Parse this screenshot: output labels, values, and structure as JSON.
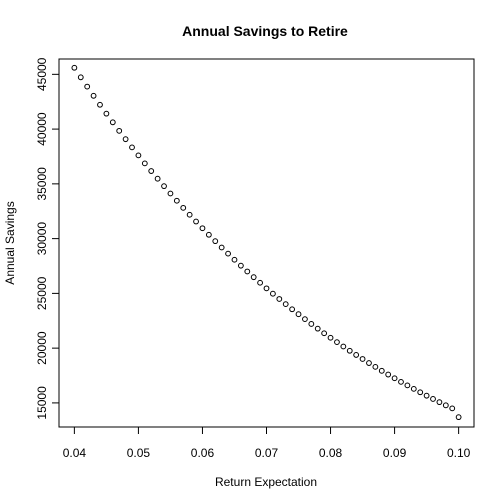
{
  "chart_data": {
    "type": "scatter",
    "title": "Annual Savings to Retire",
    "xlabel": "Return Expectation",
    "ylabel": "Annual Savings",
    "xlim": [
      0.0376,
      0.1024
    ],
    "ylim": [
      12800,
      46400
    ],
    "x_ticks": [
      {
        "value": 0.04,
        "label": "0.04"
      },
      {
        "value": 0.05,
        "label": "0.05"
      },
      {
        "value": 0.06,
        "label": "0.06"
      },
      {
        "value": 0.07,
        "label": "0.07"
      },
      {
        "value": 0.08,
        "label": "0.08"
      },
      {
        "value": 0.09,
        "label": "0.09"
      },
      {
        "value": 0.1,
        "label": "0.10"
      }
    ],
    "y_ticks": [
      {
        "value": 15000,
        "label": "15000"
      },
      {
        "value": 20000,
        "label": "20000"
      },
      {
        "value": 25000,
        "label": "25000"
      },
      {
        "value": 30000,
        "label": "30000"
      },
      {
        "value": 35000,
        "label": "35000"
      },
      {
        "value": 40000,
        "label": "40000"
      },
      {
        "value": 45000,
        "label": "45000"
      }
    ],
    "grid": false,
    "series": [
      {
        "x": [
          0.04,
          0.041,
          0.042,
          0.043,
          0.044,
          0.045,
          0.046,
          0.047,
          0.048,
          0.049,
          0.05,
          0.051,
          0.052,
          0.053,
          0.054,
          0.055,
          0.056,
          0.057,
          0.058,
          0.059,
          0.06,
          0.061,
          0.062,
          0.063,
          0.064,
          0.065,
          0.066,
          0.067,
          0.068,
          0.069,
          0.07,
          0.071,
          0.072,
          0.073,
          0.074,
          0.075,
          0.076,
          0.077,
          0.078,
          0.079,
          0.08,
          0.081,
          0.082,
          0.083,
          0.084,
          0.085,
          0.086,
          0.087,
          0.088,
          0.089,
          0.09,
          0.091,
          0.092,
          0.093,
          0.094,
          0.095,
          0.096,
          0.097,
          0.098,
          0.099,
          0.1
        ],
        "y": [
          45600,
          44730,
          43880,
          43040,
          42220,
          41410,
          40620,
          39840,
          39080,
          38330,
          37600,
          36870,
          36170,
          35470,
          34790,
          34120,
          33460,
          32810,
          32180,
          31560,
          30950,
          30350,
          29770,
          29190,
          28630,
          28070,
          27530,
          27000,
          26480,
          25970,
          25460,
          24970,
          24490,
          24020,
          23550,
          23100,
          22650,
          22210,
          21780,
          21360,
          20950,
          20550,
          20150,
          19760,
          19380,
          19010,
          18640,
          18290,
          17930,
          17590,
          17250,
          16920,
          16600,
          16280,
          15970,
          15660,
          15360,
          15070,
          14780,
          14500,
          13700
        ]
      }
    ]
  }
}
